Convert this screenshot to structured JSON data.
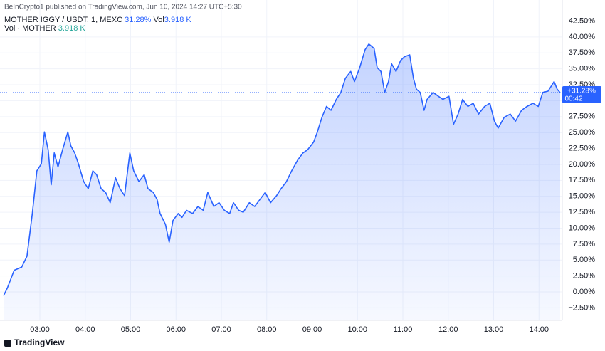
{
  "header": "BeInCrypto1 published on TradingView.com, Jun 10, 2024 14:27 UTC+5:30",
  "legend": {
    "symbol": "MOTHER IGGY / USDT, 1, MEXC",
    "change": "31.28%",
    "vol_label": "Vol",
    "vol_value": "3.918 K",
    "vol_series": "Vol · MOTHER",
    "vol_series_value": "3.918 K"
  },
  "footer": "TradingView",
  "chart_data": {
    "type": "area",
    "color": "#2962ff",
    "grid": true,
    "last_label": "+31.28%",
    "countdown": "00:42",
    "x": [
      "02:12",
      "02:17",
      "02:26",
      "02:36",
      "02:43",
      "02:50",
      "02:56",
      "03:02",
      "03:06",
      "03:11",
      "03:15",
      "03:19",
      "03:24",
      "03:30",
      "03:37",
      "03:41",
      "03:46",
      "03:51",
      "03:58",
      "04:04",
      "04:10",
      "04:15",
      "04:21",
      "04:27",
      "04:33",
      "04:40",
      "04:46",
      "04:52",
      "04:59",
      "05:04",
      "05:11",
      "05:18",
      "05:23",
      "05:30",
      "05:35",
      "05:39",
      "05:46",
      "05:51",
      "05:56",
      "06:03",
      "06:08",
      "06:14",
      "06:22",
      "06:29",
      "06:36",
      "06:42",
      "06:50",
      "06:57",
      "07:04",
      "07:11",
      "07:16",
      "07:23",
      "07:29",
      "07:37",
      "07:44",
      "07:51",
      "07:58",
      "08:05",
      "08:13",
      "08:19",
      "08:26",
      "08:33",
      "08:41",
      "08:48",
      "08:54",
      "09:02",
      "09:07",
      "09:13",
      "09:19",
      "09:25",
      "09:32",
      "09:38",
      "09:44",
      "09:51",
      "09:56",
      "10:03",
      "10:10",
      "10:15",
      "10:22",
      "10:26",
      "10:31",
      "10:36",
      "10:41",
      "10:45",
      "10:51",
      "10:57",
      "11:02",
      "11:09",
      "11:14",
      "11:18",
      "11:23",
      "11:28",
      "11:32",
      "11:40",
      "11:47",
      "11:53",
      "12:01",
      "12:07",
      "12:13",
      "12:19",
      "12:26",
      "12:33",
      "12:40",
      "12:48",
      "12:55",
      "13:01",
      "13:06",
      "13:14",
      "13:22",
      "13:29",
      "13:37",
      "13:44",
      "13:52",
      "13:59",
      "14:05",
      "14:12",
      "14:20",
      "14:24",
      "14:28"
    ],
    "values": [
      -0.6,
      0.6,
      3.4,
      3.9,
      5.6,
      12.3,
      19,
      20.1,
      25.1,
      22.3,
      16.8,
      21.8,
      19.6,
      22.3,
      25.1,
      22.9,
      21.8,
      20.1,
      17.3,
      16.2,
      19,
      18.4,
      16.2,
      15.6,
      14,
      17.9,
      16.2,
      15.1,
      21.8,
      19,
      17.3,
      18.4,
      16.2,
      15.6,
      14.5,
      12.3,
      10.6,
      7.8,
      11.2,
      12.3,
      11.7,
      12.8,
      12.3,
      13.4,
      12.8,
      15.6,
      13.4,
      14,
      12.8,
      12.3,
      14,
      12.8,
      12.5,
      14,
      13.4,
      14.5,
      15.6,
      14,
      15.1,
      16.2,
      17.3,
      19,
      20.7,
      21.8,
      22.3,
      23.5,
      25.1,
      27.4,
      29.1,
      28.5,
      30.2,
      31.3,
      33.5,
      34.6,
      33,
      35.2,
      38,
      38.9,
      38.2,
      35.2,
      34.6,
      31.3,
      33,
      35.8,
      34.6,
      36.3,
      36.9,
      37.2,
      33.5,
      31.8,
      31.3,
      28.5,
      30.2,
      31.3,
      30.7,
      30.2,
      30.7,
      26.3,
      27.9,
      30.2,
      29.1,
      29.6,
      27.9,
      29.1,
      29.6,
      26.8,
      25.7,
      27.4,
      27.9,
      26.8,
      28.5,
      29.1,
      29.6,
      29.1,
      31.3,
      31.5,
      33,
      31.8,
      31.28
    ],
    "ylim": [
      -4.47,
      45.8
    ],
    "yticks": [
      {
        "value": -2.5,
        "label": "−2.50%"
      },
      {
        "value": 0,
        "label": "0.00%"
      },
      {
        "value": 2.5,
        "label": "2.50%"
      },
      {
        "value": 5,
        "label": "5.00%"
      },
      {
        "value": 7.5,
        "label": "7.50%"
      },
      {
        "value": 10,
        "label": "10.00%"
      },
      {
        "value": 12.5,
        "label": "12.50%"
      },
      {
        "value": 15,
        "label": "15.00%"
      },
      {
        "value": 17.5,
        "label": "17.50%"
      },
      {
        "value": 20,
        "label": "20.00%"
      },
      {
        "value": 22.5,
        "label": "22.50%"
      },
      {
        "value": 25,
        "label": "25.00%"
      },
      {
        "value": 27.5,
        "label": "27.50%"
      },
      {
        "value": 30,
        "label": "30.00%"
      },
      {
        "value": 32.5,
        "label": "32.50%"
      },
      {
        "value": 35,
        "label": "35.00%"
      },
      {
        "value": 37.5,
        "label": "37.50%"
      },
      {
        "value": 40,
        "label": "40.00%"
      },
      {
        "value": 42.5,
        "label": "42.50%"
      }
    ],
    "xticks": [
      "03:00",
      "04:00",
      "05:00",
      "06:00",
      "07:00",
      "08:00",
      "09:00",
      "10:00",
      "11:00",
      "12:00",
      "13:00",
      "14:00"
    ]
  }
}
